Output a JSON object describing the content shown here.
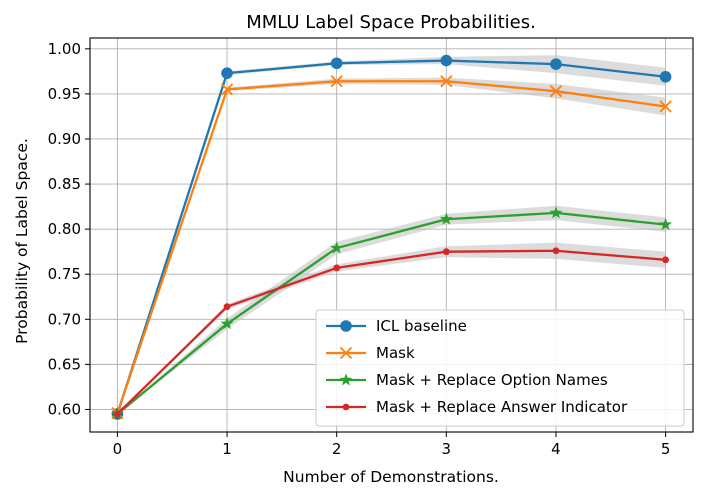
{
  "chart_data": {
    "type": "line",
    "title": "MMLU Label Space Probabilities.",
    "xlabel": "Number of Demonstrations.",
    "ylabel": "Probability of Label Space.",
    "x": [
      0,
      1,
      2,
      3,
      4,
      5
    ],
    "xlim": [
      -0.25,
      5.25
    ],
    "ylim": [
      0.575,
      1.012
    ],
    "xticks": [
      0,
      1,
      2,
      3,
      4,
      5
    ],
    "yticks": [
      0.6,
      0.65,
      0.7,
      0.75,
      0.8,
      0.85,
      0.9,
      0.95,
      1.0
    ],
    "ytick_labels": [
      "0.60",
      "0.65",
      "0.70",
      "0.75",
      "0.80",
      "0.85",
      "0.90",
      "0.95",
      "1.00"
    ],
    "grid": true,
    "legend_position": "lower-right",
    "band_color": "#bfbfbf",
    "series": [
      {
        "name": "ICL baseline",
        "color": "#1f77b4",
        "marker": "circle",
        "values": [
          0.595,
          0.973,
          0.984,
          0.987,
          0.983,
          0.969
        ],
        "band": [
          0.0,
          0.002,
          0.002,
          0.004,
          0.01,
          0.01
        ]
      },
      {
        "name": "Mask",
        "color": "#ff7f0e",
        "marker": "x",
        "values": [
          0.596,
          0.955,
          0.964,
          0.964,
          0.953,
          0.936
        ],
        "band": [
          0.0,
          0.002,
          0.003,
          0.004,
          0.008,
          0.01
        ]
      },
      {
        "name": "Mask + Replace Option Names",
        "color": "#2ca02c",
        "marker": "star",
        "values": [
          0.595,
          0.695,
          0.779,
          0.811,
          0.818,
          0.805
        ],
        "band": [
          0.0,
          0.006,
          0.007,
          0.006,
          0.008,
          0.008
        ]
      },
      {
        "name": "Mask + Replace Answer Indicator",
        "color": "#d62728",
        "marker": "dot",
        "values": [
          0.595,
          0.714,
          0.757,
          0.775,
          0.776,
          0.766
        ],
        "band": [
          0.0,
          0.003,
          0.004,
          0.006,
          0.009,
          0.009
        ]
      }
    ]
  }
}
